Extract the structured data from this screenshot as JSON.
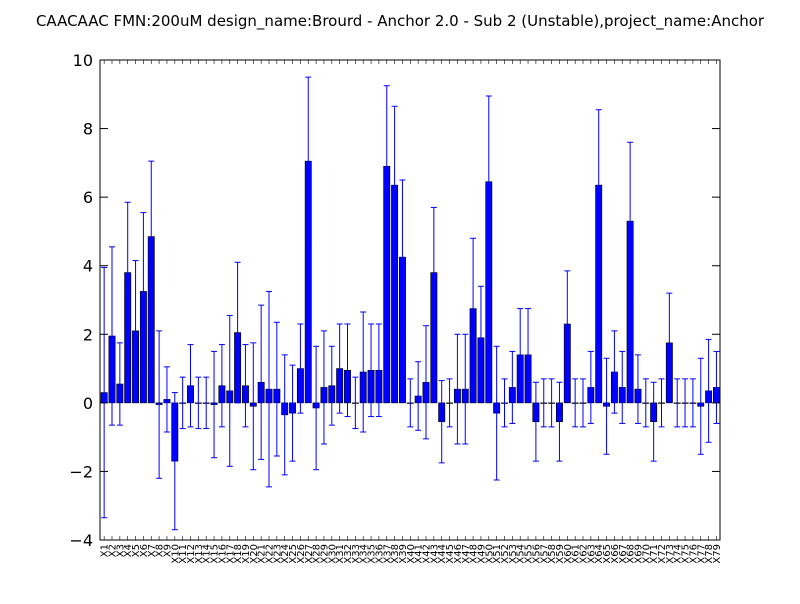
{
  "chart_data": {
    "type": "bar",
    "title": "CAACAAC  FMN:200uM  design_name:Brourd - Anchor 2.0 - Sub 2 (Unstable),project_name:Anchor",
    "xlabel": "",
    "ylabel": "",
    "ylim": [
      -4,
      10
    ],
    "yticks": [
      "−4",
      "−2",
      "0",
      "2",
      "4",
      "6",
      "8",
      "10"
    ],
    "grid": false,
    "bar_color": "#0000ff",
    "error_color": "#0000ff",
    "categories": [
      "X1",
      "X2",
      "X3",
      "X4",
      "X5",
      "X6",
      "X7",
      "X8",
      "X9",
      "X10",
      "X11",
      "X12",
      "X13",
      "X14",
      "X15",
      "X16",
      "X17",
      "X18",
      "X19",
      "X20",
      "X21",
      "X22",
      "X23",
      "X24",
      "X25",
      "X26",
      "X27",
      "X28",
      "X29",
      "X30",
      "X31",
      "X32",
      "X33",
      "X34",
      "X35",
      "X36",
      "X37",
      "X38",
      "X39",
      "X40",
      "X41",
      "X42",
      "X43",
      "X44",
      "X45",
      "X46",
      "X47",
      "X48",
      "X49",
      "X50",
      "X51",
      "X52",
      "X53",
      "X54",
      "X55",
      "X56",
      "X57",
      "X58",
      "X59",
      "X60",
      "X61",
      "X62",
      "X63",
      "X64",
      "X65",
      "X66",
      "X67",
      "X68",
      "X69",
      "X70",
      "X71",
      "X72",
      "X73",
      "X74",
      "X75",
      "X76",
      "X77",
      "X78",
      "X79"
    ],
    "values": [
      0.3,
      1.95,
      0.55,
      3.8,
      2.1,
      3.25,
      4.85,
      -0.05,
      0.1,
      -1.7,
      0.0,
      0.5,
      0.0,
      0.0,
      -0.05,
      0.5,
      0.35,
      2.05,
      0.5,
      -0.1,
      0.6,
      0.4,
      0.4,
      -0.35,
      -0.3,
      1.0,
      7.05,
      -0.15,
      0.45,
      0.5,
      1.0,
      0.95,
      0.0,
      0.9,
      0.95,
      0.95,
      6.9,
      6.35,
      4.25,
      0.0,
      0.2,
      0.6,
      3.8,
      -0.55,
      0.0,
      0.4,
      0.4,
      2.75,
      1.9,
      6.45,
      -0.3,
      0.0,
      0.45,
      1.4,
      1.4,
      -0.55,
      0.0,
      0.0,
      -0.55,
      2.3,
      0.0,
      0.0,
      0.45,
      6.35,
      -0.1,
      0.9,
      0.45,
      5.3,
      0.4,
      0.0,
      -0.55,
      0.0,
      1.75,
      0.0,
      0.0,
      0.0,
      -0.1,
      0.35,
      0.45
    ],
    "errors": [
      3.65,
      2.6,
      1.2,
      2.05,
      2.05,
      2.3,
      2.2,
      2.15,
      0.95,
      2.0,
      0.75,
      1.2,
      0.75,
      0.75,
      1.55,
      1.2,
      2.2,
      2.05,
      1.2,
      1.85,
      2.25,
      2.85,
      1.95,
      1.75,
      1.4,
      1.3,
      2.45,
      1.8,
      1.65,
      1.15,
      1.3,
      1.35,
      0.75,
      1.75,
      1.35,
      1.35,
      2.35,
      2.3,
      2.25,
      0.7,
      1.0,
      1.65,
      1.9,
      1.2,
      0.7,
      1.6,
      1.6,
      2.05,
      1.5,
      2.5,
      1.95,
      0.7,
      1.05,
      1.35,
      1.35,
      1.15,
      0.7,
      0.7,
      1.15,
      1.55,
      0.7,
      0.7,
      1.05,
      2.2,
      1.4,
      1.2,
      1.05,
      2.3,
      1.0,
      0.7,
      1.15,
      0.7,
      1.45,
      0.7,
      0.7,
      0.7,
      1.4,
      1.5,
      1.05
    ]
  }
}
